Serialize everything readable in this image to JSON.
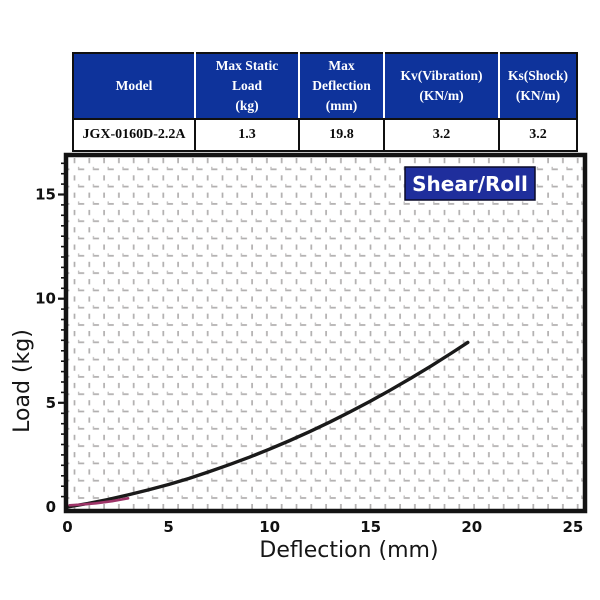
{
  "table": {
    "headers": [
      {
        "id": "model",
        "label": "Model"
      },
      {
        "id": "max-static-load",
        "label": "Max Static\nLoad\n(kg)"
      },
      {
        "id": "max-deflection",
        "label": "Max\nDeflection\n(mm)"
      },
      {
        "id": "kv-vibration",
        "label": "Kv(Vibration)\n(KN/m)"
      },
      {
        "id": "ks-shock",
        "label": "Ks(Shock)\n(KN/m)"
      }
    ],
    "row": [
      "JGX-0160D-2.2A",
      "1.3",
      "19.8",
      "3.2",
      "3.2"
    ]
  },
  "chart_data": {
    "type": "line",
    "badge": "Shear/Roll",
    "xlabel": "Deflection (mm)",
    "ylabel": "Load (kg)",
    "x_ticks": [
      0,
      5,
      10,
      15,
      20,
      25
    ],
    "y_ticks": [
      0,
      5,
      10,
      15
    ],
    "xlim": [
      0,
      25.5
    ],
    "ylim": [
      0,
      16.8
    ],
    "grid": true,
    "y_minor_step": 0.5,
    "series": [
      {
        "name": "load-deflection-curve",
        "color": "#1a1a1a",
        "width": 3.4,
        "points": [
          [
            0,
            0
          ],
          [
            1,
            0.17
          ],
          [
            2,
            0.36
          ],
          [
            3,
            0.58
          ],
          [
            4,
            0.82
          ],
          [
            5,
            1.08
          ],
          [
            6,
            1.37
          ],
          [
            7,
            1.69
          ],
          [
            8,
            2.03
          ],
          [
            9,
            2.39
          ],
          [
            10,
            2.78
          ],
          [
            11,
            3.19
          ],
          [
            12,
            3.63
          ],
          [
            13,
            4.09
          ],
          [
            14,
            4.58
          ],
          [
            15,
            5.09
          ],
          [
            16,
            5.63
          ],
          [
            17,
            6.19
          ],
          [
            18,
            6.78
          ],
          [
            19,
            7.39
          ],
          [
            19.8,
            7.9
          ]
        ]
      },
      {
        "name": "origin-highlight",
        "color": "#9e3468",
        "width": 2.6,
        "points": [
          [
            0.1,
            0.08
          ],
          [
            0.7,
            0.12
          ],
          [
            1.4,
            0.18
          ],
          [
            2.2,
            0.28
          ],
          [
            3.0,
            0.42
          ]
        ]
      }
    ]
  },
  "colors": {
    "table_header_bg": "#0e339b",
    "badge_bg": "#1f2e9c",
    "frame": "#131313",
    "grid_dash": "#b0aeae"
  }
}
